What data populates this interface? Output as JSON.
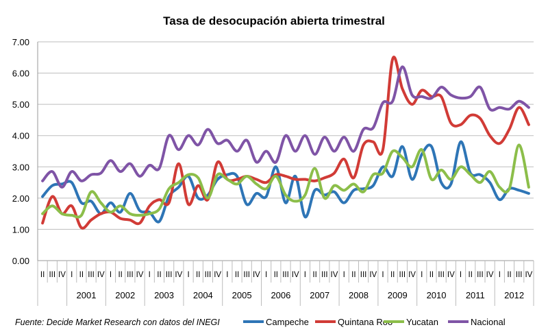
{
  "chart_data": {
    "type": "line",
    "title": "Tasa de desocupación abierta trimestral",
    "source": "Fuente: Decide Market Research con datos del INEGI",
    "xlabel": "",
    "ylabel": "",
    "ylim": [
      0,
      7
    ],
    "y_ticks": [
      "0.00",
      "1.00",
      "2.00",
      "3.00",
      "4.00",
      "5.00",
      "6.00",
      "7.00"
    ],
    "grid": true,
    "legend_position": "bottom",
    "quarter_labels": [
      "II",
      "III",
      "IV",
      "I",
      "II",
      "III",
      "IV",
      "I",
      "II",
      "III",
      "IV",
      "I",
      "II",
      "III",
      "IV",
      "I",
      "II",
      "III",
      "IV",
      "I",
      "II",
      "III",
      "IV",
      "I",
      "II",
      "III",
      "IV",
      "I",
      "II",
      "III",
      "IV",
      "I",
      "II",
      "III",
      "IV",
      "I",
      "II",
      "III",
      "IV",
      "I",
      "II",
      "III",
      "IV",
      "I",
      "II",
      "III",
      "IV",
      "I",
      "II",
      "III",
      "IV"
    ],
    "year_groups": [
      {
        "year": "",
        "quarters": 3
      },
      {
        "year": "2001",
        "quarters": 4
      },
      {
        "year": "2002",
        "quarters": 4
      },
      {
        "year": "2003",
        "quarters": 4
      },
      {
        "year": "2004",
        "quarters": 4
      },
      {
        "year": "2005",
        "quarters": 4
      },
      {
        "year": "2006",
        "quarters": 4
      },
      {
        "year": "2007",
        "quarters": 4
      },
      {
        "year": "2008",
        "quarters": 4
      },
      {
        "year": "2009",
        "quarters": 4
      },
      {
        "year": "2010",
        "quarters": 4
      },
      {
        "year": "2011",
        "quarters": 4
      },
      {
        "year": "2012",
        "quarters": 4
      }
    ],
    "series": [
      {
        "name": "Campeche",
        "color": "#2e75b6",
        "values": [
          2.05,
          2.4,
          2.45,
          2.5,
          1.85,
          1.9,
          1.5,
          1.85,
          1.55,
          2.15,
          1.6,
          1.55,
          1.25,
          2.05,
          2.35,
          2.7,
          2.0,
          2.1,
          2.6,
          2.75,
          2.7,
          1.8,
          2.15,
          2.05,
          3.0,
          1.85,
          2.7,
          1.4,
          2.25,
          2.1,
          2.2,
          1.85,
          2.25,
          2.3,
          2.4,
          3.0,
          2.7,
          3.65,
          2.6,
          3.4,
          3.65,
          2.5,
          2.45,
          3.8,
          2.8,
          2.75,
          2.5,
          1.95,
          2.3,
          2.25,
          2.15
        ]
      },
      {
        "name": "Quintana Roo",
        "color": "#d13b36",
        "values": [
          1.2,
          2.05,
          1.5,
          1.75,
          1.05,
          1.3,
          1.5,
          1.55,
          1.35,
          1.3,
          1.2,
          1.75,
          1.95,
          1.85,
          3.1,
          1.8,
          2.4,
          1.95,
          3.15,
          2.6,
          2.6,
          2.7,
          2.6,
          2.5,
          2.75,
          2.7,
          2.6,
          2.6,
          2.55,
          2.65,
          2.8,
          3.25,
          2.65,
          3.7,
          3.8,
          3.55,
          6.45,
          5.5,
          5.0,
          5.45,
          5.25,
          5.25,
          4.4,
          4.35,
          4.65,
          4.55,
          4.0,
          3.75,
          4.2,
          4.9,
          4.35
        ]
      },
      {
        "name": "Yucatan",
        "color": "#8cbe4a",
        "values": [
          1.5,
          1.75,
          1.5,
          1.45,
          1.45,
          2.2,
          1.85,
          1.55,
          1.75,
          1.5,
          1.45,
          1.5,
          1.65,
          2.3,
          2.5,
          2.75,
          2.65,
          2.0,
          2.75,
          2.6,
          2.45,
          2.7,
          2.45,
          2.3,
          2.7,
          2.1,
          1.9,
          2.1,
          2.95,
          2.0,
          2.4,
          2.25,
          2.45,
          2.2,
          2.75,
          2.8,
          3.5,
          3.3,
          3.0,
          3.55,
          2.6,
          2.9,
          2.6,
          3.0,
          2.75,
          2.5,
          2.85,
          2.35,
          2.3,
          3.7,
          2.35
        ]
      },
      {
        "name": "Nacional",
        "color": "#7f54a6",
        "values": [
          2.55,
          2.85,
          2.35,
          2.85,
          2.55,
          2.75,
          2.8,
          3.2,
          2.85,
          3.1,
          2.7,
          3.05,
          2.95,
          4.0,
          3.55,
          4.0,
          3.7,
          4.2,
          3.75,
          3.85,
          3.5,
          3.85,
          3.15,
          3.5,
          3.15,
          4.0,
          3.5,
          4.0,
          3.4,
          3.95,
          3.5,
          3.95,
          3.5,
          4.2,
          4.25,
          5.05,
          5.1,
          6.2,
          5.3,
          5.25,
          5.2,
          5.55,
          5.3,
          5.2,
          5.25,
          5.55,
          4.85,
          4.9,
          4.85,
          5.1,
          4.9
        ]
      }
    ]
  }
}
